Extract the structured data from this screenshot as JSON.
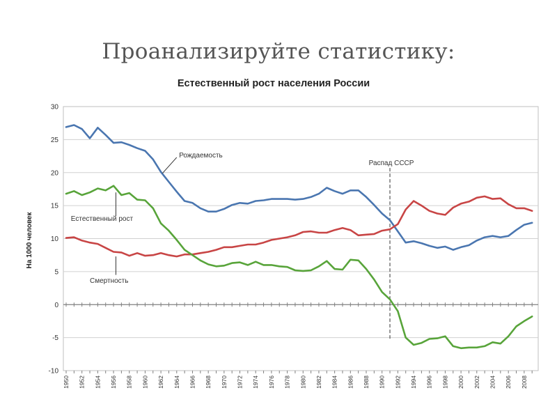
{
  "slide": {
    "title": "Проанализируйте статистику:"
  },
  "chart_data": {
    "type": "line",
    "title": "Естественный рост населения России",
    "ylabel": "На 1000 человек",
    "xlabel": "",
    "ylim": [
      -10,
      30
    ],
    "yticks": [
      "30",
      "25",
      "20",
      "15",
      "10",
      "5",
      "0",
      "-5",
      "-10"
    ],
    "xticks": [
      "1950",
      "1952",
      "1954",
      "1956",
      "1958",
      "1960",
      "1962",
      "1964",
      "1966",
      "1968",
      "1970",
      "1972",
      "1974",
      "1976",
      "1978",
      "1980",
      "1982",
      "1984",
      "1986",
      "1988",
      "1990",
      "1992",
      "1994",
      "1996",
      "1998",
      "2000",
      "2002",
      "2004",
      "2006",
      "2008"
    ],
    "grid": "horizontal",
    "legend": "none",
    "x": [
      1950,
      1951,
      1952,
      1953,
      1954,
      1955,
      1956,
      1957,
      1958,
      1959,
      1960,
      1961,
      1962,
      1963,
      1964,
      1965,
      1966,
      1967,
      1968,
      1969,
      1970,
      1971,
      1972,
      1973,
      1974,
      1975,
      1976,
      1977,
      1978,
      1979,
      1980,
      1981,
      1982,
      1983,
      1984,
      1985,
      1986,
      1987,
      1988,
      1989,
      1990,
      1991,
      1992,
      1993,
      1994,
      1995,
      1996,
      1997,
      1998,
      1999,
      2000,
      2001,
      2002,
      2003,
      2004,
      2005,
      2006,
      2007,
      2008,
      2009
    ],
    "series": [
      {
        "name": "Рождаемость",
        "color": "#4a76b0",
        "values": [
          26.9,
          27.2,
          26.6,
          25.2,
          26.8,
          25.7,
          24.5,
          24.6,
          24.2,
          23.7,
          23.3,
          22.0,
          20.1,
          18.6,
          17.1,
          15.7,
          15.4,
          14.6,
          14.1,
          14.1,
          14.5,
          15.1,
          15.4,
          15.3,
          15.7,
          15.8,
          16.0,
          16.0,
          16.0,
          15.9,
          16.0,
          16.3,
          16.8,
          17.7,
          17.2,
          16.8,
          17.3,
          17.3,
          16.3,
          15.1,
          13.8,
          12.8,
          11.1,
          9.4,
          9.6,
          9.3,
          8.9,
          8.6,
          8.8,
          8.3,
          8.7,
          9.0,
          9.7,
          10.2,
          10.4,
          10.2,
          10.4,
          11.3,
          12.1,
          12.4
        ]
      },
      {
        "name": "Смертность",
        "color": "#c84545",
        "values": [
          10.1,
          10.2,
          9.7,
          9.4,
          9.2,
          8.6,
          8.0,
          7.9,
          7.4,
          7.8,
          7.4,
          7.5,
          7.8,
          7.5,
          7.3,
          7.6,
          7.6,
          7.8,
          8.0,
          8.3,
          8.7,
          8.7,
          8.9,
          9.1,
          9.1,
          9.4,
          9.8,
          10.0,
          10.2,
          10.5,
          11.0,
          11.1,
          10.9,
          10.9,
          11.3,
          11.6,
          11.3,
          10.5,
          10.6,
          10.7,
          11.2,
          11.4,
          12.2,
          14.4,
          15.7,
          15.0,
          14.2,
          13.8,
          13.6,
          14.7,
          15.3,
          15.6,
          16.2,
          16.4,
          16.0,
          16.1,
          15.2,
          14.6,
          14.6,
          14.2
        ]
      },
      {
        "name": "Естественный рост",
        "color": "#58a43a",
        "values": [
          16.8,
          17.2,
          16.6,
          17.0,
          17.6,
          17.3,
          18.0,
          16.6,
          16.9,
          15.9,
          15.8,
          14.6,
          12.3,
          11.2,
          9.8,
          8.3,
          7.5,
          6.7,
          6.1,
          5.8,
          5.9,
          6.3,
          6.4,
          6.0,
          6.5,
          6.0,
          6.0,
          5.8,
          5.7,
          5.2,
          5.1,
          5.2,
          5.8,
          6.6,
          5.4,
          5.3,
          6.8,
          6.7,
          5.4,
          3.8,
          1.9,
          0.8,
          -1.0,
          -5.0,
          -6.1,
          -5.8,
          -5.2,
          -5.1,
          -4.8,
          -6.3,
          -6.6,
          -6.5,
          -6.5,
          -6.3,
          -5.7,
          -5.9,
          -4.8,
          -3.3,
          -2.5,
          -1.8
        ]
      }
    ],
    "annotations": [
      {
        "text": "Рождаемость",
        "series": "Рождаемость"
      },
      {
        "text": "Естественный рост",
        "series": "Естественный рост"
      },
      {
        "text": "Смертность",
        "series": "Смертность"
      },
      {
        "text": "Распад СССР",
        "x": 1991
      }
    ]
  }
}
